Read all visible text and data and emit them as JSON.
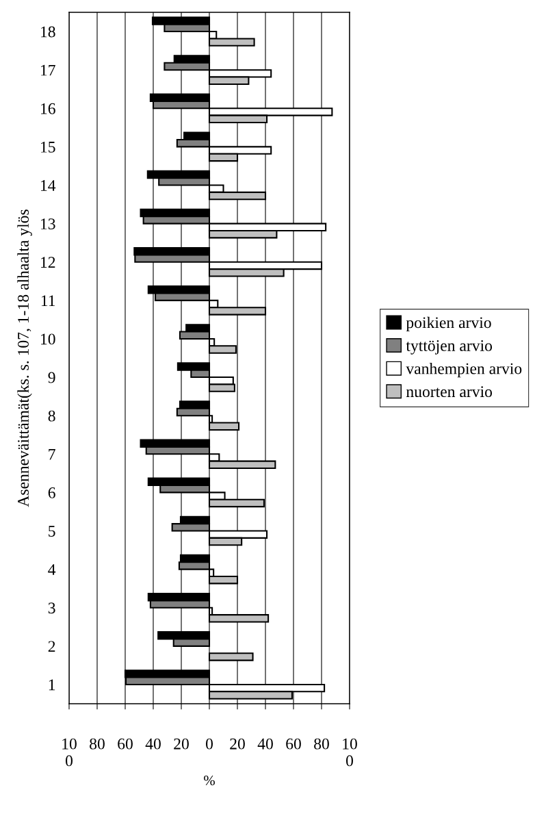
{
  "chart_data": {
    "type": "bar",
    "orientation": "horizontal",
    "ylabel": "Asenneväittämät(ks. s. 107, 1-18 alhaalta ylös",
    "xlabel": "%",
    "categories": [
      "18",
      "17",
      "16",
      "15",
      "14",
      "13",
      "12",
      "11",
      "10",
      "9",
      "8",
      "7",
      "6",
      "5",
      "4",
      "3",
      "2",
      "1"
    ],
    "series": [
      {
        "name": "poikien arvio",
        "color": "#000000",
        "values": [
          -40.5,
          -25,
          -42,
          -18,
          -44,
          -49,
          -53.5,
          -43.5,
          -16.5,
          -22.5,
          -21,
          -49,
          -43.5,
          -20.5,
          -20.5,
          -43.5,
          -36.5,
          -60
        ]
      },
      {
        "name": "tyttöjen arvio",
        "color": "#808080",
        "values": [
          -32,
          -32,
          -40,
          -23,
          -36,
          -47,
          -53,
          -38.5,
          -21,
          -13,
          -23,
          -45,
          -35,
          -26.5,
          -21.5,
          -42,
          -25.5,
          -59.5
        ]
      },
      {
        "name": "vanhempien arvio",
        "color": "#ffffff",
        "values": [
          5,
          44,
          87.5,
          44,
          10,
          83,
          80,
          6,
          3.5,
          17,
          2,
          7,
          11,
          41,
          3,
          2,
          null,
          82
        ]
      },
      {
        "name": "nuorten arvio",
        "color": "#bfbfbf",
        "values": [
          32,
          28,
          41,
          20,
          40,
          48,
          53,
          40,
          19,
          18,
          21,
          47,
          39,
          23,
          20,
          42,
          31,
          59
        ]
      }
    ],
    "xlim": [
      -100,
      100
    ],
    "xticks": [
      {
        "value": -100,
        "label": "10\n0"
      },
      {
        "value": -80,
        "label": "80"
      },
      {
        "value": -60,
        "label": "60"
      },
      {
        "value": -40,
        "label": "40"
      },
      {
        "value": -20,
        "label": "20"
      },
      0,
      20,
      40,
      60,
      80,
      {
        "value": 100,
        "label": "10\n0"
      }
    ],
    "grid": "x",
    "legend": "right"
  }
}
